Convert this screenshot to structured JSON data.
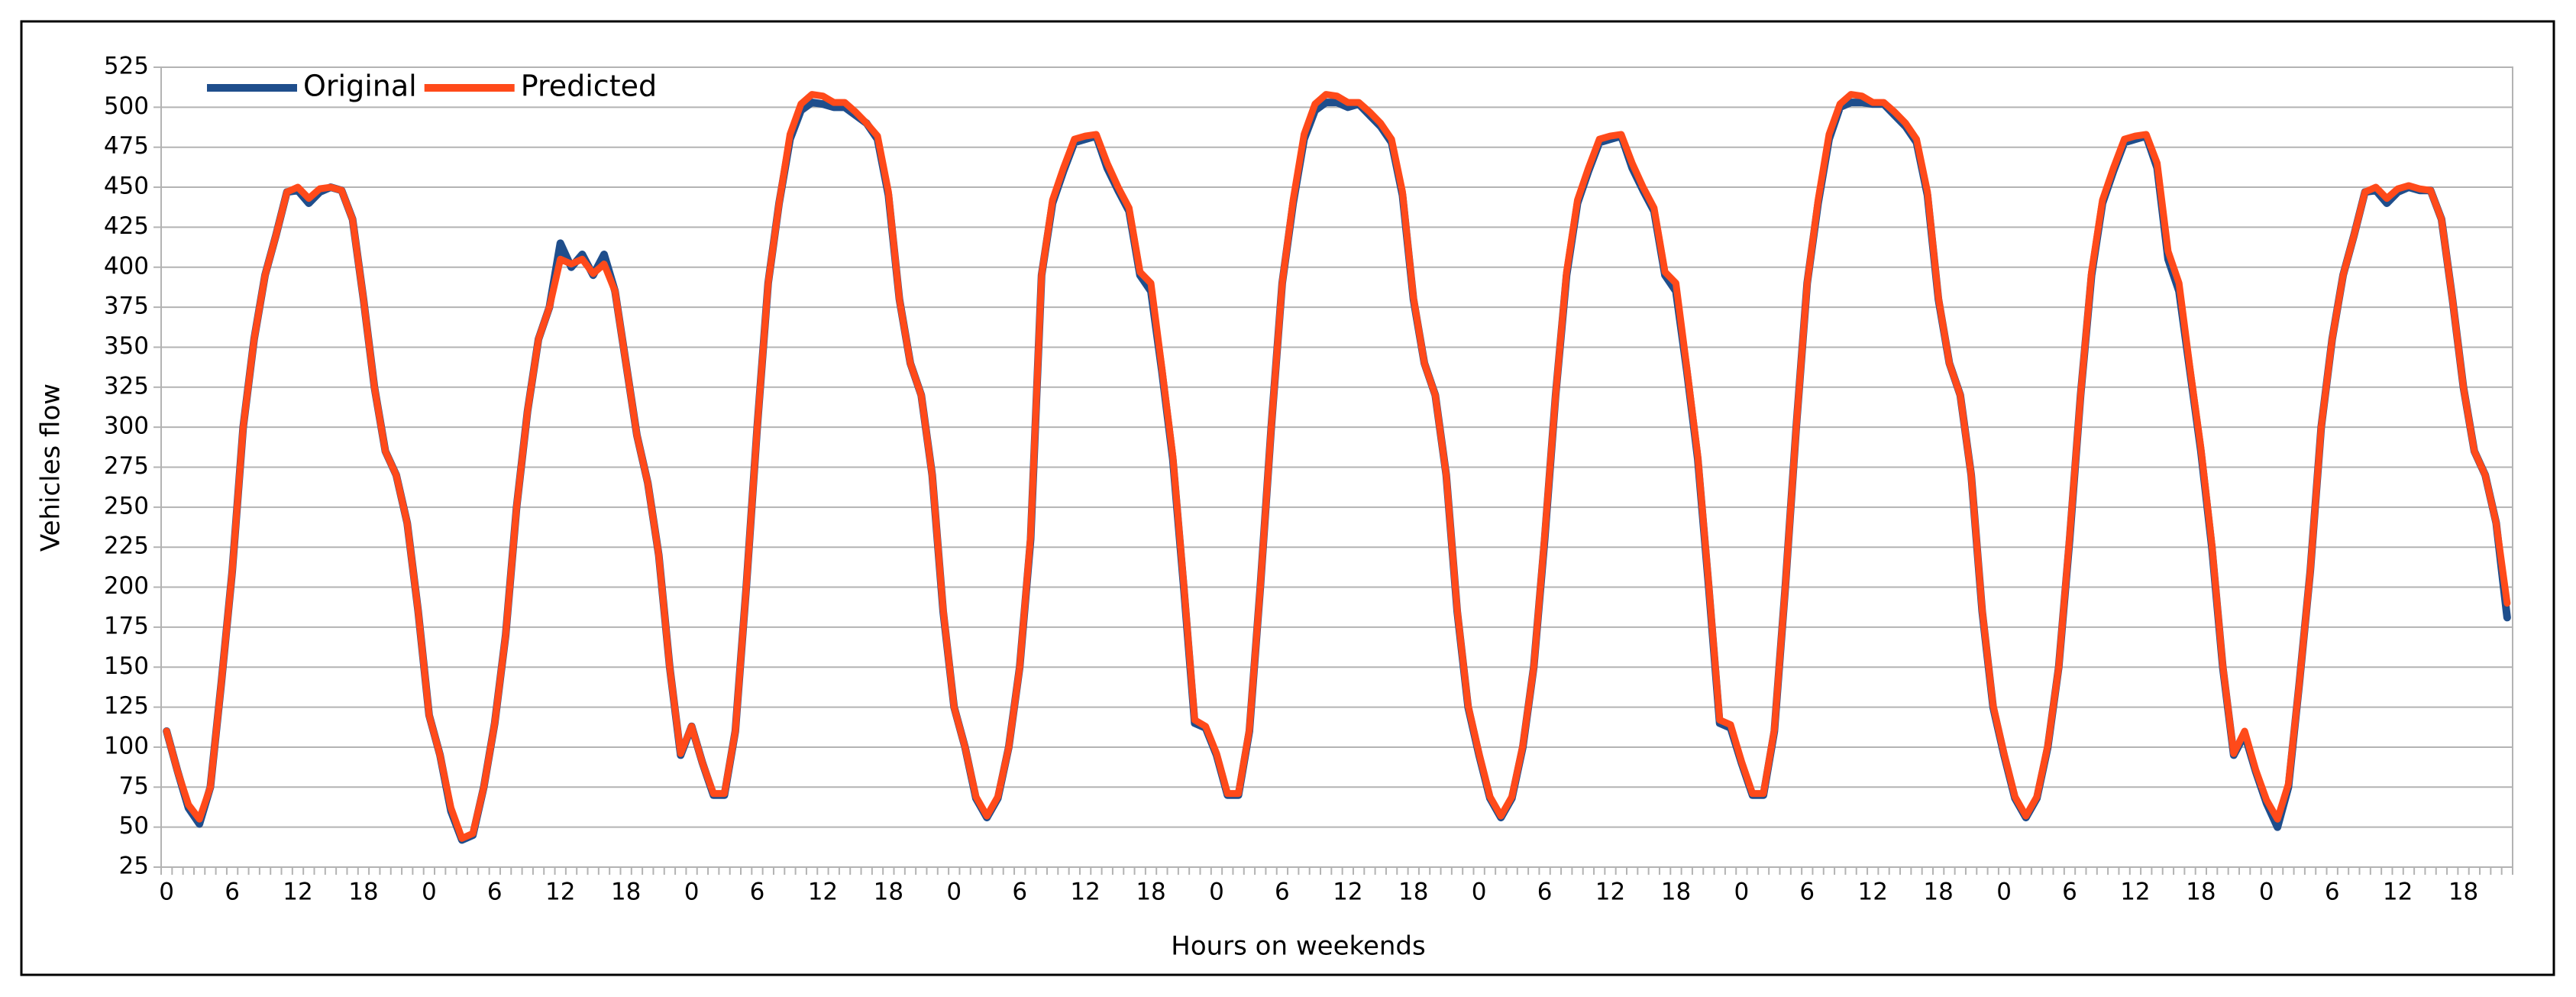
{
  "chart_data": {
    "type": "line",
    "x_label": "Hours on weekends",
    "y_label": "Vehicles flow",
    "categories": [
      "0",
      null,
      null,
      null,
      null,
      null,
      "6",
      null,
      null,
      null,
      null,
      null,
      "12",
      null,
      null,
      null,
      null,
      null,
      "18",
      null,
      null,
      null,
      null,
      null,
      "0",
      null,
      null,
      null,
      null,
      null,
      "6",
      null,
      null,
      null,
      null,
      null,
      "12",
      null,
      null,
      null,
      null,
      null,
      "18",
      null,
      null,
      null,
      null,
      null,
      "0",
      null,
      null,
      null,
      null,
      null,
      "6",
      null,
      null,
      null,
      null,
      null,
      "12",
      null,
      null,
      null,
      null,
      null,
      "18",
      null,
      null,
      null,
      null,
      null,
      "0",
      null,
      null,
      null,
      null,
      null,
      "6",
      null,
      null,
      null,
      null,
      null,
      "12",
      null,
      null,
      null,
      null,
      null,
      "18",
      null,
      null,
      null,
      null,
      null,
      "0",
      null,
      null,
      null,
      null,
      null,
      "6",
      null,
      null,
      null,
      null,
      null,
      "12",
      null,
      null,
      null,
      null,
      null,
      "18",
      null,
      null,
      null,
      null,
      null,
      "0",
      null,
      null,
      null,
      null,
      null,
      "6",
      null,
      null,
      null,
      null,
      null,
      "12",
      null,
      null,
      null,
      null,
      null,
      "18",
      null,
      null,
      null,
      null,
      null,
      "0",
      null,
      null,
      null,
      null,
      null,
      "6",
      null,
      null,
      null,
      null,
      null,
      "12",
      null,
      null,
      null,
      null,
      null,
      "18",
      null,
      null,
      null,
      null,
      null,
      "0",
      null,
      null,
      null,
      null,
      null,
      "6",
      null,
      null,
      null,
      null,
      null,
      "12",
      null,
      null,
      null,
      null,
      null,
      "18",
      null,
      null,
      null,
      null,
      null,
      "0",
      null,
      null,
      null,
      null,
      null,
      "6",
      null,
      null,
      null,
      null,
      null,
      "12",
      null,
      null,
      null,
      null,
      null,
      "18",
      null,
      null,
      null,
      null
    ],
    "series": [
      {
        "name": "Original",
        "color": "#1f4e8c",
        "values": [
          110,
          85,
          62,
          52,
          75,
          140,
          210,
          300,
          355,
          395,
          420,
          447,
          448,
          440,
          447,
          450,
          448,
          430,
          380,
          325,
          285,
          270,
          240,
          185,
          120,
          95,
          60,
          42,
          45,
          75,
          115,
          170,
          250,
          310,
          355,
          375,
          415,
          400,
          408,
          395,
          408,
          385,
          340,
          295,
          265,
          220,
          150,
          95,
          113,
          90,
          70,
          70,
          110,
          200,
          300,
          390,
          440,
          480,
          498,
          503,
          502,
          500,
          500,
          495,
          490,
          480,
          445,
          380,
          340,
          320,
          270,
          185,
          125,
          100,
          68,
          56,
          68,
          100,
          150,
          230,
          395,
          440,
          460,
          478,
          480,
          482,
          462,
          448,
          435,
          395,
          385,
          335,
          280,
          200,
          115,
          112,
          95,
          70,
          70,
          110,
          200,
          300,
          390,
          440,
          480,
          498,
          503,
          503,
          500,
          502,
          495,
          488,
          478,
          445,
          380,
          340,
          320,
          270,
          185,
          125,
          95,
          68,
          56,
          68,
          100,
          150,
          230,
          320,
          395,
          440,
          460,
          478,
          480,
          482,
          462,
          448,
          435,
          395,
          385,
          335,
          280,
          200,
          115,
          112,
          90,
          70,
          70,
          110,
          200,
          300,
          390,
          440,
          480,
          500,
          503,
          503,
          502,
          502,
          495,
          488,
          478,
          445,
          380,
          340,
          320,
          270,
          185,
          125,
          95,
          68,
          56,
          68,
          100,
          150,
          230,
          320,
          395,
          440,
          460,
          478,
          480,
          482,
          462,
          405,
          385,
          335,
          285,
          225,
          150,
          95,
          108,
          85,
          65,
          50,
          75,
          140,
          210,
          300,
          355,
          395,
          420,
          447,
          448,
          440,
          447,
          450,
          448,
          448,
          430,
          380,
          325,
          285,
          270,
          240,
          181
        ]
      },
      {
        "name": "Predicted",
        "color": "#ff4a1a",
        "values": [
          110,
          85,
          64,
          55,
          75,
          140,
          210,
          300,
          355,
          395,
          420,
          447,
          450,
          443,
          449,
          450,
          448,
          430,
          380,
          325,
          285,
          270,
          240,
          185,
          120,
          95,
          62,
          43,
          46,
          75,
          115,
          170,
          250,
          310,
          355,
          375,
          405,
          402,
          405,
          396,
          402,
          385,
          340,
          295,
          265,
          220,
          150,
          96,
          113,
          90,
          71,
          71,
          110,
          200,
          300,
          390,
          440,
          483,
          502,
          508,
          507,
          503,
          503,
          497,
          490,
          482,
          447,
          380,
          340,
          320,
          270,
          186,
          125,
          100,
          69,
          57,
          69,
          100,
          150,
          232,
          395,
          442,
          462,
          480,
          482,
          483,
          465,
          450,
          437,
          397,
          390,
          337,
          282,
          202,
          117,
          113,
          96,
          71,
          71,
          111,
          200,
          300,
          390,
          442,
          483,
          502,
          508,
          507,
          503,
          503,
          497,
          490,
          480,
          447,
          381,
          340,
          320,
          270,
          186,
          126,
          96,
          69,
          57,
          69,
          101,
          150,
          232,
          320,
          397,
          442,
          462,
          480,
          482,
          483,
          465,
          450,
          437,
          397,
          390,
          337,
          282,
          202,
          117,
          114,
          91,
          71,
          71,
          111,
          200,
          300,
          390,
          442,
          483,
          502,
          508,
          507,
          503,
          503,
          497,
          490,
          480,
          447,
          381,
          340,
          320,
          270,
          186,
          126,
          96,
          69,
          57,
          69,
          101,
          150,
          232,
          320,
          397,
          442,
          462,
          480,
          482,
          483,
          465,
          410,
          390,
          337,
          287,
          227,
          151,
          96,
          110,
          86,
          67,
          55,
          77,
          140,
          210,
          300,
          355,
          395,
          420,
          447,
          450,
          443,
          449,
          451,
          449,
          448,
          430,
          380,
          325,
          285,
          270,
          240,
          190
        ]
      }
    ],
    "ylim": [
      25,
      525
    ],
    "yticks": [
      25,
      50,
      75,
      100,
      125,
      150,
      175,
      200,
      225,
      250,
      275,
      300,
      325,
      350,
      375,
      400,
      425,
      450,
      475,
      500,
      525
    ],
    "grid": true,
    "legend": "top-left"
  }
}
